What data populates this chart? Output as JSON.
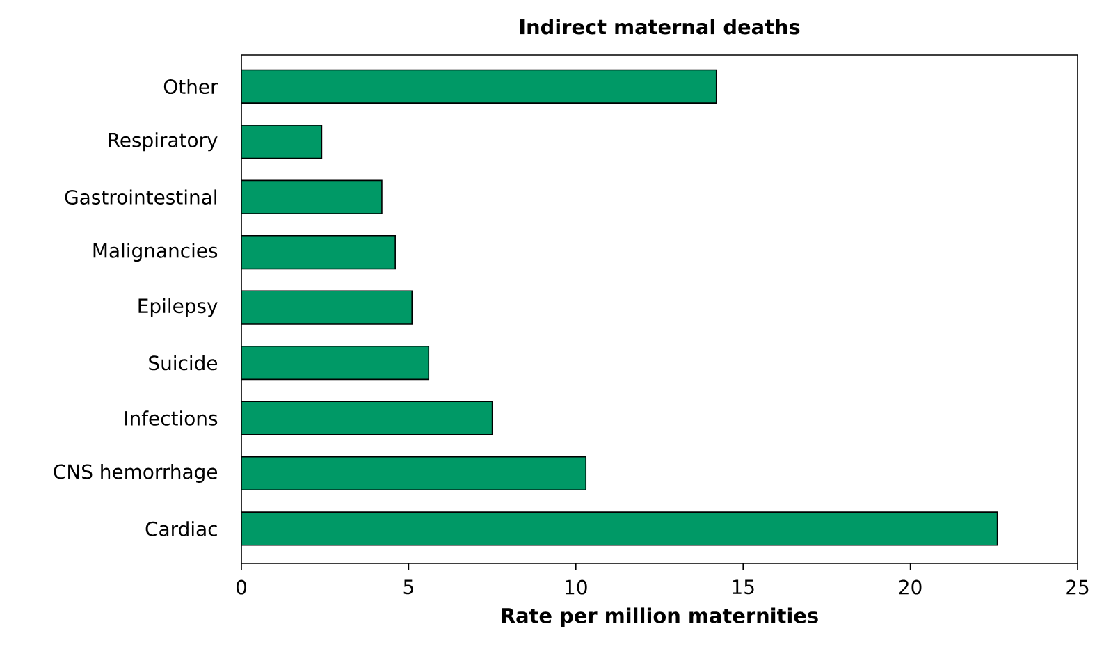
{
  "chart_data": {
    "type": "bar",
    "orientation": "horizontal",
    "title": "Indirect maternal deaths",
    "xlabel": "Rate per million maternities",
    "categories": [
      "Other",
      "Respiratory",
      "Gastrointestinal",
      "Malignancies",
      "Epilepsy",
      "Suicide",
      "Infections",
      "CNS hemorrhage",
      "Cardiac"
    ],
    "values": [
      14.2,
      2.4,
      4.2,
      4.6,
      5.1,
      5.6,
      7.5,
      10.3,
      22.6
    ],
    "color": "#009966",
    "xlim": [
      0,
      25
    ],
    "xticks": [
      0,
      5,
      10,
      15,
      20,
      25
    ]
  }
}
